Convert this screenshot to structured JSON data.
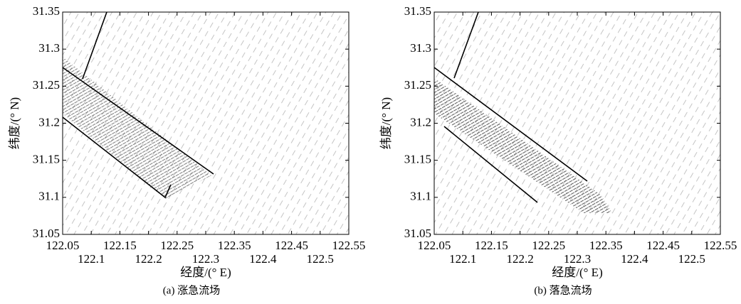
{
  "chart_data": [
    {
      "type": "quiver",
      "caption": "(a) 涨急流场",
      "x_label": "经度/(° E)",
      "y_label": "纬度/(° N)",
      "xlim": [
        122.05,
        122.55
      ],
      "ylim": [
        31.05,
        31.35
      ],
      "xticks": [
        122.05,
        122.1,
        122.15,
        122.2,
        122.25,
        122.3,
        122.35,
        122.4,
        122.45,
        122.5,
        122.55
      ],
      "yticks": [
        31.05,
        31.1,
        31.15,
        31.2,
        31.25,
        31.3,
        31.35
      ]
    },
    {
      "type": "quiver",
      "caption": "(b) 落急流场",
      "x_label": "经度/(° E)",
      "y_label": "纬度/(° N)",
      "xlim": [
        122.05,
        122.55
      ],
      "ylim": [
        31.05,
        31.35
      ],
      "xticks": [
        122.05,
        122.1,
        122.15,
        122.2,
        122.25,
        122.3,
        122.35,
        122.4,
        122.45,
        122.5,
        122.55
      ],
      "yticks": [
        31.05,
        31.1,
        31.15,
        31.2,
        31.25,
        31.3,
        31.35
      ]
    }
  ]
}
